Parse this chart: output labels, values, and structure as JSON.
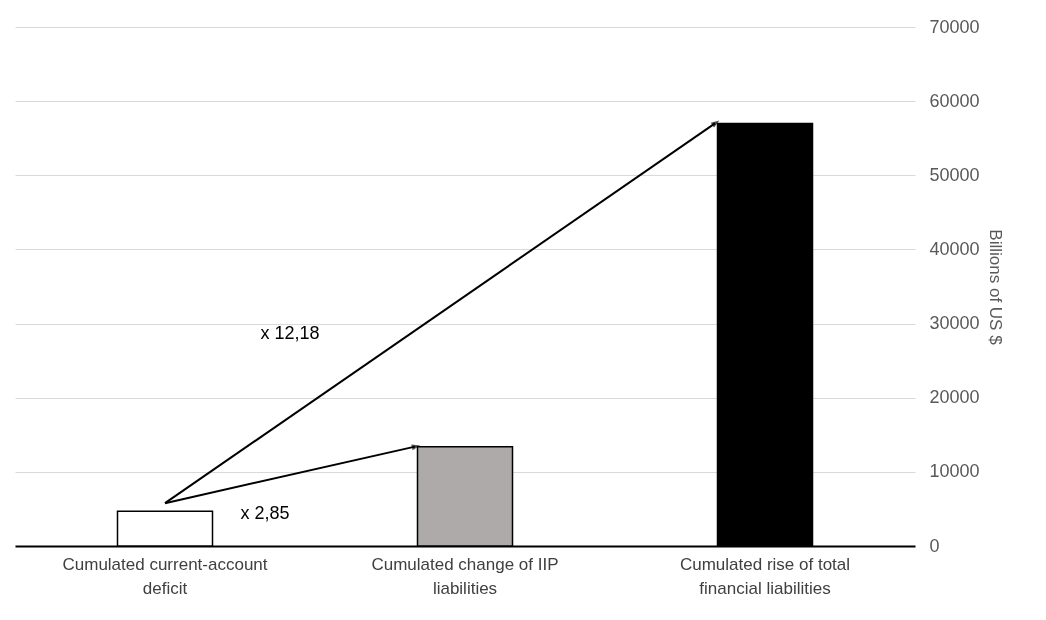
{
  "chart_data": {
    "type": "bar",
    "categories": [
      "Cumulated current-account deficit",
      "Cumulated change of IIP liabilities",
      "Cumulated rise of total financial liabilities"
    ],
    "values": [
      4700,
      13400,
      57000
    ],
    "colors": [
      "#ffffff",
      "#aeaaaa",
      "#000000"
    ],
    "ylabel": "Billions of US $",
    "ylim": [
      0,
      70000
    ],
    "yticks": [
      0,
      10000,
      20000,
      30000,
      40000,
      50000,
      60000,
      70000
    ],
    "grid": "y",
    "annotations": [
      "x 12,18",
      "x 2,85"
    ]
  }
}
